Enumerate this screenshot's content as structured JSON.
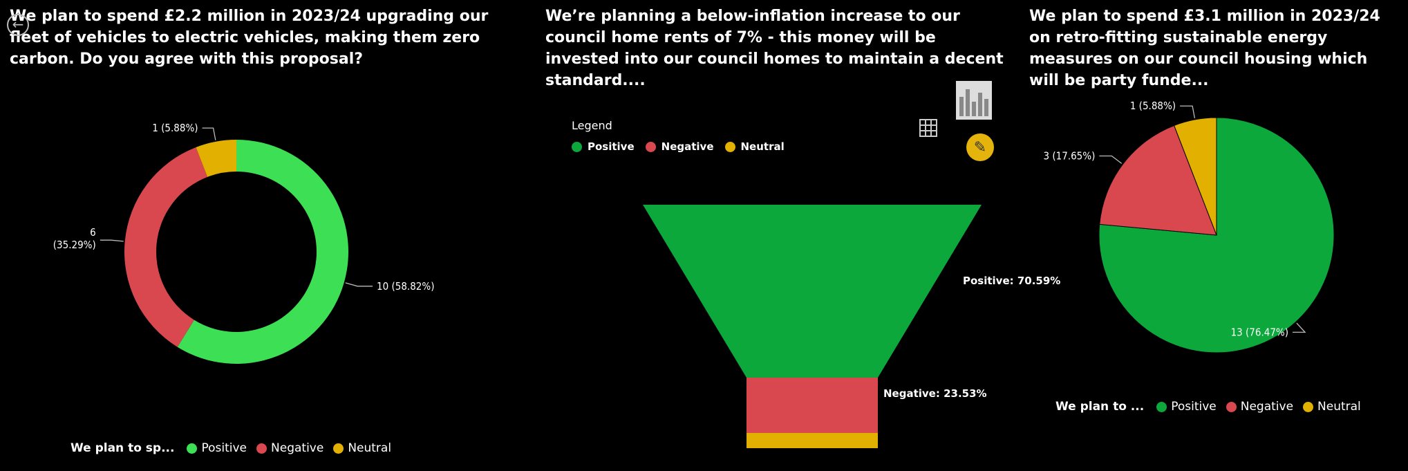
{
  "colors": {
    "positive": "#3de055",
    "negative": "#d9484f",
    "neutral": "#e2b000",
    "positive_funnel": "#0ca83c",
    "positive_pie": "#0ca83c"
  },
  "panel1": {
    "title": "We plan to spend £2.2 million in 2023/24 upgrading our fleet of vehicles to electric vehicles, making them zero carbon. Do you agree with this proposal?",
    "legend_title": "We plan to sp...",
    "legend": [
      "Positive",
      "Negative",
      "Neutral"
    ]
  },
  "panel2": {
    "title": "We’re planning a below-inflation increase to our council home rents of 7% - this money will be invested into our council homes to maintain a decent standard....",
    "legend_title": "Legend",
    "legend": [
      "Positive",
      "Negative",
      "Neutral"
    ]
  },
  "panel3": {
    "title": "We plan to spend £3.1 million in 2023/24 on retro-fitting sustainable energy measures on our council housing which will be party funde...",
    "legend_title": "We plan to ...",
    "legend": [
      "Positive",
      "Negative",
      "Neutral"
    ]
  },
  "chart_data": [
    {
      "type": "donut",
      "categories": [
        "Positive",
        "Negative",
        "Neutral"
      ],
      "values": [
        10,
        6,
        1
      ],
      "data_labels": [
        "10 (58.82%)",
        "6 (35.29%)",
        "1 (5.88%)"
      ]
    },
    {
      "type": "funnel",
      "categories": [
        "Positive",
        "Negative",
        "Neutral"
      ],
      "values": [
        70.59,
        23.53,
        5.88
      ],
      "data_labels": [
        "Positive: 70.59%",
        "Negative: 23.53%",
        ""
      ]
    },
    {
      "type": "pie",
      "categories": [
        "Positive",
        "Negative",
        "Neutral"
      ],
      "values": [
        13,
        3,
        1
      ],
      "data_labels": [
        "13 (76.47%)",
        "3 (17.65%)",
        "1 (5.88%)"
      ]
    }
  ]
}
